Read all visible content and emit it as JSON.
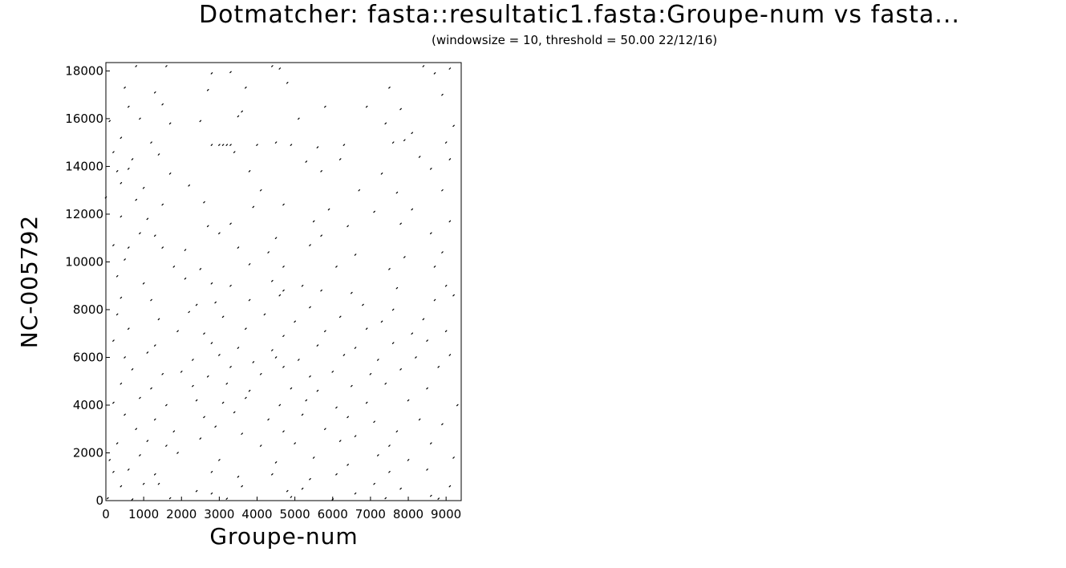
{
  "chart_data": {
    "type": "scatter",
    "title": "Dotmatcher: fasta::resultatic1.fasta:Groupe-num vs fasta...",
    "subtitle": "(windowsize = 10, threshold = 50.00  22/12/16)",
    "xlabel": "Groupe-num",
    "ylabel": "NC-005792",
    "xlim": [
      0,
      9400
    ],
    "ylim": [
      0,
      18350
    ],
    "xticks": [
      "0",
      "1000",
      "2000",
      "3000",
      "4000",
      "5000",
      "6000",
      "7000",
      "8000",
      "9000"
    ],
    "yticks": [
      "0",
      "2000",
      "4000",
      "6000",
      "8000",
      "10000",
      "12000",
      "14000",
      "16000",
      "18000"
    ],
    "xtick_values": [
      0,
      1000,
      2000,
      3000,
      4000,
      5000,
      6000,
      7000,
      8000,
      9000
    ],
    "ytick_values": [
      0,
      2000,
      4000,
      6000,
      8000,
      10000,
      12000,
      14000,
      16000,
      18000
    ],
    "grid": false,
    "legend": "none",
    "points": [
      [
        800,
        18200
      ],
      [
        1600,
        18200
      ],
      [
        2800,
        17900
      ],
      [
        3300,
        17950
      ],
      [
        4400,
        18200
      ],
      [
        4600,
        18100
      ],
      [
        8400,
        18200
      ],
      [
        8700,
        17900
      ],
      [
        9100,
        18100
      ],
      [
        500,
        17300
      ],
      [
        1300,
        17100
      ],
      [
        2700,
        17200
      ],
      [
        3700,
        17300
      ],
      [
        4800,
        17500
      ],
      [
        7500,
        17300
      ],
      [
        8900,
        17000
      ],
      [
        600,
        16500
      ],
      [
        1500,
        16600
      ],
      [
        3600,
        16300
      ],
      [
        5800,
        16500
      ],
      [
        6900,
        16500
      ],
      [
        7800,
        16400
      ],
      [
        100,
        15900
      ],
      [
        900,
        16000
      ],
      [
        1700,
        15800
      ],
      [
        2500,
        15900
      ],
      [
        3500,
        16100
      ],
      [
        5100,
        16000
      ],
      [
        7400,
        15800
      ],
      [
        8100,
        15400
      ],
      [
        9200,
        15700
      ],
      [
        400,
        15200
      ],
      [
        1200,
        15000
      ],
      [
        2800,
        14900
      ],
      [
        3000,
        14900
      ],
      [
        3100,
        14900
      ],
      [
        3200,
        14900
      ],
      [
        3300,
        14900
      ],
      [
        4000,
        14900
      ],
      [
        4500,
        15000
      ],
      [
        4900,
        14900
      ],
      [
        5600,
        14800
      ],
      [
        6300,
        14900
      ],
      [
        7600,
        15000
      ],
      [
        7900,
        15100
      ],
      [
        9000,
        15000
      ],
      [
        200,
        14600
      ],
      [
        700,
        14300
      ],
      [
        1400,
        14500
      ],
      [
        3400,
        14600
      ],
      [
        5300,
        14200
      ],
      [
        6200,
        14300
      ],
      [
        8300,
        14400
      ],
      [
        9100,
        14300
      ],
      [
        300,
        13800
      ],
      [
        600,
        13900
      ],
      [
        1700,
        13700
      ],
      [
        3800,
        13800
      ],
      [
        5700,
        13800
      ],
      [
        7300,
        13700
      ],
      [
        8600,
        13900
      ],
      [
        400,
        13300
      ],
      [
        1000,
        13100
      ],
      [
        2200,
        13200
      ],
      [
        4100,
        13000
      ],
      [
        6700,
        13000
      ],
      [
        7700,
        12900
      ],
      [
        8900,
        13000
      ],
      [
        0,
        12700
      ],
      [
        800,
        12600
      ],
      [
        1500,
        12400
      ],
      [
        2600,
        12500
      ],
      [
        3900,
        12300
      ],
      [
        4700,
        12400
      ],
      [
        5900,
        12200
      ],
      [
        7100,
        12100
      ],
      [
        8100,
        12200
      ],
      [
        400,
        11900
      ],
      [
        1100,
        11800
      ],
      [
        2700,
        11500
      ],
      [
        3300,
        11600
      ],
      [
        5500,
        11700
      ],
      [
        6400,
        11500
      ],
      [
        7800,
        11600
      ],
      [
        9100,
        11700
      ],
      [
        900,
        11200
      ],
      [
        1300,
        11100
      ],
      [
        3000,
        11200
      ],
      [
        4500,
        11000
      ],
      [
        5700,
        11100
      ],
      [
        8600,
        11200
      ],
      [
        200,
        10700
      ],
      [
        600,
        10600
      ],
      [
        1500,
        10600
      ],
      [
        2100,
        10500
      ],
      [
        3500,
        10600
      ],
      [
        4300,
        10400
      ],
      [
        5400,
        10700
      ],
      [
        6600,
        10300
      ],
      [
        7900,
        10200
      ],
      [
        8900,
        10400
      ],
      [
        500,
        10100
      ],
      [
        1800,
        9800
      ],
      [
        2500,
        9700
      ],
      [
        3800,
        9900
      ],
      [
        4700,
        9800
      ],
      [
        6100,
        9800
      ],
      [
        7500,
        9700
      ],
      [
        8700,
        9800
      ],
      [
        300,
        9400
      ],
      [
        1000,
        9100
      ],
      [
        2100,
        9300
      ],
      [
        2800,
        9100
      ],
      [
        3300,
        9000
      ],
      [
        4400,
        9200
      ],
      [
        4700,
        8800
      ],
      [
        5200,
        9000
      ],
      [
        5700,
        8800
      ],
      [
        6500,
        8700
      ],
      [
        7700,
        8900
      ],
      [
        9000,
        9000
      ],
      [
        400,
        8500
      ],
      [
        1200,
        8400
      ],
      [
        2400,
        8200
      ],
      [
        2900,
        8300
      ],
      [
        3800,
        8400
      ],
      [
        4600,
        8600
      ],
      [
        5400,
        8100
      ],
      [
        6800,
        8200
      ],
      [
        7600,
        8000
      ],
      [
        8700,
        8400
      ],
      [
        9200,
        8600
      ],
      [
        300,
        7800
      ],
      [
        1400,
        7600
      ],
      [
        2200,
        7900
      ],
      [
        3100,
        7700
      ],
      [
        4200,
        7800
      ],
      [
        5000,
        7500
      ],
      [
        6200,
        7700
      ],
      [
        7300,
        7500
      ],
      [
        8400,
        7600
      ],
      [
        600,
        7200
      ],
      [
        1900,
        7100
      ],
      [
        2600,
        7000
      ],
      [
        3700,
        7200
      ],
      [
        4700,
        6900
      ],
      [
        5800,
        7100
      ],
      [
        6900,
        7200
      ],
      [
        8100,
        7000
      ],
      [
        9000,
        7100
      ],
      [
        200,
        6700
      ],
      [
        1300,
        6500
      ],
      [
        2800,
        6600
      ],
      [
        3500,
        6400
      ],
      [
        4400,
        6300
      ],
      [
        5600,
        6500
      ],
      [
        6600,
        6400
      ],
      [
        7600,
        6600
      ],
      [
        8500,
        6700
      ],
      [
        500,
        6000
      ],
      [
        1100,
        6200
      ],
      [
        2300,
        5900
      ],
      [
        3000,
        6100
      ],
      [
        3900,
        5800
      ],
      [
        4500,
        6000
      ],
      [
        5100,
        5900
      ],
      [
        6300,
        6100
      ],
      [
        7200,
        5900
      ],
      [
        8200,
        6000
      ],
      [
        9100,
        6100
      ],
      [
        700,
        5500
      ],
      [
        1500,
        5300
      ],
      [
        2000,
        5400
      ],
      [
        2700,
        5200
      ],
      [
        3300,
        5600
      ],
      [
        4100,
        5300
      ],
      [
        4700,
        5600
      ],
      [
        5400,
        5200
      ],
      [
        6000,
        5400
      ],
      [
        7000,
        5300
      ],
      [
        7800,
        5500
      ],
      [
        8800,
        5600
      ],
      [
        400,
        4900
      ],
      [
        1200,
        4700
      ],
      [
        2300,
        4800
      ],
      [
        3200,
        4900
      ],
      [
        3800,
        4600
      ],
      [
        4900,
        4700
      ],
      [
        5600,
        4600
      ],
      [
        6500,
        4800
      ],
      [
        7400,
        4900
      ],
      [
        8500,
        4700
      ],
      [
        200,
        4100
      ],
      [
        900,
        4300
      ],
      [
        1600,
        4000
      ],
      [
        2400,
        4200
      ],
      [
        3100,
        4100
      ],
      [
        3700,
        4300
      ],
      [
        4600,
        4000
      ],
      [
        5300,
        4200
      ],
      [
        6100,
        3900
      ],
      [
        6900,
        4100
      ],
      [
        8000,
        4200
      ],
      [
        9300,
        4000
      ],
      [
        500,
        3600
      ],
      [
        1300,
        3400
      ],
      [
        2600,
        3500
      ],
      [
        3400,
        3700
      ],
      [
        4300,
        3400
      ],
      [
        5200,
        3600
      ],
      [
        6400,
        3500
      ],
      [
        7100,
        3300
      ],
      [
        8300,
        3400
      ],
      [
        8900,
        3200
      ],
      [
        800,
        3000
      ],
      [
        1800,
        2900
      ],
      [
        2900,
        3100
      ],
      [
        3600,
        2800
      ],
      [
        4700,
        2900
      ],
      [
        5800,
        3000
      ],
      [
        6600,
        2700
      ],
      [
        7700,
        2900
      ],
      [
        300,
        2400
      ],
      [
        1100,
        2500
      ],
      [
        1600,
        2300
      ],
      [
        2500,
        2600
      ],
      [
        4100,
        2300
      ],
      [
        5000,
        2400
      ],
      [
        6200,
        2500
      ],
      [
        7500,
        2300
      ],
      [
        8600,
        2400
      ],
      [
        100,
        1700
      ],
      [
        900,
        1900
      ],
      [
        1900,
        2000
      ],
      [
        3000,
        1700
      ],
      [
        4500,
        1600
      ],
      [
        5500,
        1800
      ],
      [
        6400,
        1500
      ],
      [
        7200,
        1900
      ],
      [
        8000,
        1700
      ],
      [
        9200,
        1800
      ],
      [
        200,
        1200
      ],
      [
        600,
        1300
      ],
      [
        1300,
        1100
      ],
      [
        2800,
        1200
      ],
      [
        3500,
        1000
      ],
      [
        4400,
        1100
      ],
      [
        5400,
        900
      ],
      [
        6100,
        1100
      ],
      [
        7500,
        1200
      ],
      [
        8500,
        1300
      ],
      [
        400,
        600
      ],
      [
        1000,
        700
      ],
      [
        1400,
        700
      ],
      [
        2400,
        400
      ],
      [
        2800,
        300
      ],
      [
        3600,
        600
      ],
      [
        4800,
        400
      ],
      [
        5200,
        500
      ],
      [
        6600,
        300
      ],
      [
        7100,
        700
      ],
      [
        7800,
        500
      ],
      [
        8600,
        200
      ],
      [
        9100,
        600
      ],
      [
        50,
        100
      ],
      [
        700,
        50
      ],
      [
        1700,
        100
      ],
      [
        3200,
        80
      ],
      [
        4900,
        150
      ],
      [
        6000,
        50
      ],
      [
        7400,
        100
      ],
      [
        8800,
        80
      ]
    ]
  }
}
